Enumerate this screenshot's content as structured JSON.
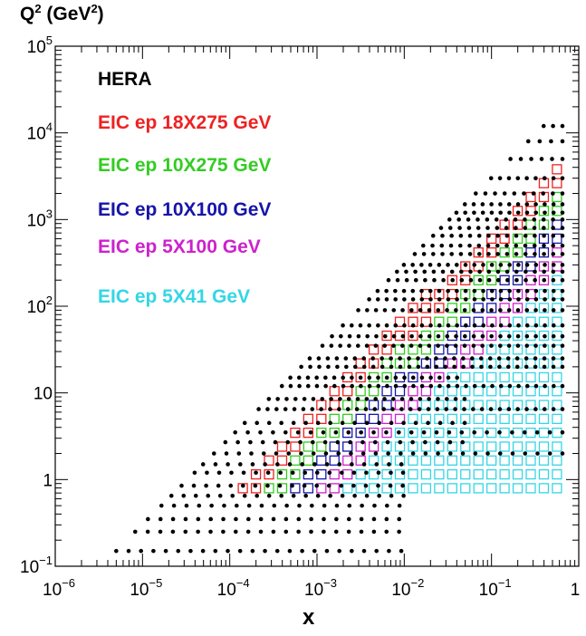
{
  "chart_data": {
    "type": "scatter",
    "title": "",
    "xlabel": "x",
    "ylabel_base": "Q",
    "ylabel_exp": "2",
    "ylabel_unit": "(GeV",
    "ylabel_unit_exp": "2",
    "ylabel_close": ")",
    "x_scale": "log",
    "y_scale": "log",
    "xlim": [
      1e-06,
      1
    ],
    "ylim": [
      0.1,
      100000
    ],
    "x_ticks": [
      {
        "v": 1e-06,
        "base": "10",
        "exp": "−6"
      },
      {
        "v": 1e-05,
        "base": "10",
        "exp": "−5"
      },
      {
        "v": 0.0001,
        "base": "10",
        "exp": "−4"
      },
      {
        "v": 0.001,
        "base": "10",
        "exp": "−3"
      },
      {
        "v": 0.01,
        "base": "10",
        "exp": "−2"
      },
      {
        "v": 0.1,
        "base": "10",
        "exp": "−1"
      },
      {
        "v": 1,
        "base": "1",
        "exp": ""
      }
    ],
    "y_ticks": [
      {
        "v": 0.1,
        "base": "10",
        "exp": "−1"
      },
      {
        "v": 1,
        "base": "1",
        "exp": ""
      },
      {
        "v": 10,
        "base": "10",
        "exp": ""
      },
      {
        "v": 100,
        "base": "10",
        "exp": "2"
      },
      {
        "v": 1000,
        "base": "10",
        "exp": "3"
      },
      {
        "v": 10000,
        "base": "10",
        "exp": "4"
      },
      {
        "v": 100000,
        "base": "10",
        "exp": "5"
      }
    ],
    "grid": false,
    "legend_position": "top-left",
    "series": [
      {
        "name": "HERA",
        "color": "#000000",
        "marker": "dot",
        "coverage": {
          "xmin": 5e-06,
          "xmax": 0.65,
          "q2min": 0.15,
          "q2max_at_xmin": 0.35,
          "q2max_at_xmax": 30000,
          "q2_levels": [
            0.15,
            0.25,
            0.35,
            0.5,
            0.65,
            0.85,
            1.2,
            1.5,
            2,
            2.7,
            3.5,
            4.5,
            6.5,
            8.5,
            12,
            15,
            20,
            25,
            35,
            45,
            60,
            90,
            120,
            150,
            200,
            250,
            300,
            400,
            500,
            650,
            800,
            1000,
            1200,
            1500,
            2000,
            3000,
            5000,
            8000,
            12000,
            20000,
            30000
          ]
        }
      },
      {
        "name": "EIC ep 18X275 GeV",
        "color": "#ee2222",
        "marker": "open-square",
        "coverage": {
          "xmin": 5e-05,
          "xmax": 0.7,
          "q2min": 0.55,
          "q2max": 5500,
          "reach_slope": 1.0
        }
      },
      {
        "name": "EIC ep 10X275 GeV",
        "color": "#33cc22",
        "marker": "open-square",
        "coverage": {
          "xmin": 8e-05,
          "xmax": 0.7,
          "q2min": 0.55,
          "q2max": 2500,
          "reach_slope": 1.0
        }
      },
      {
        "name": "EIC ep 10X100 GeV",
        "color": "#1515aa",
        "marker": "open-square",
        "coverage": {
          "xmin": 0.00025,
          "xmax": 0.7,
          "q2min": 0.55,
          "q2max": 1200,
          "reach_slope": 1.0
        }
      },
      {
        "name": "EIC ep 5X100 GeV",
        "color": "#cc22cc",
        "marker": "open-square",
        "coverage": {
          "xmin": 0.0005,
          "xmax": 0.7,
          "q2min": 0.55,
          "q2max": 600,
          "reach_slope": 1.0
        }
      },
      {
        "name": "EIC ep 5X41 GeV",
        "color": "#33d6e6",
        "marker": "open-square",
        "coverage": {
          "xmin": 0.001,
          "xmax": 0.7,
          "q2min": 0.55,
          "q2max": 300,
          "reach_slope": 1.0
        }
      }
    ]
  }
}
